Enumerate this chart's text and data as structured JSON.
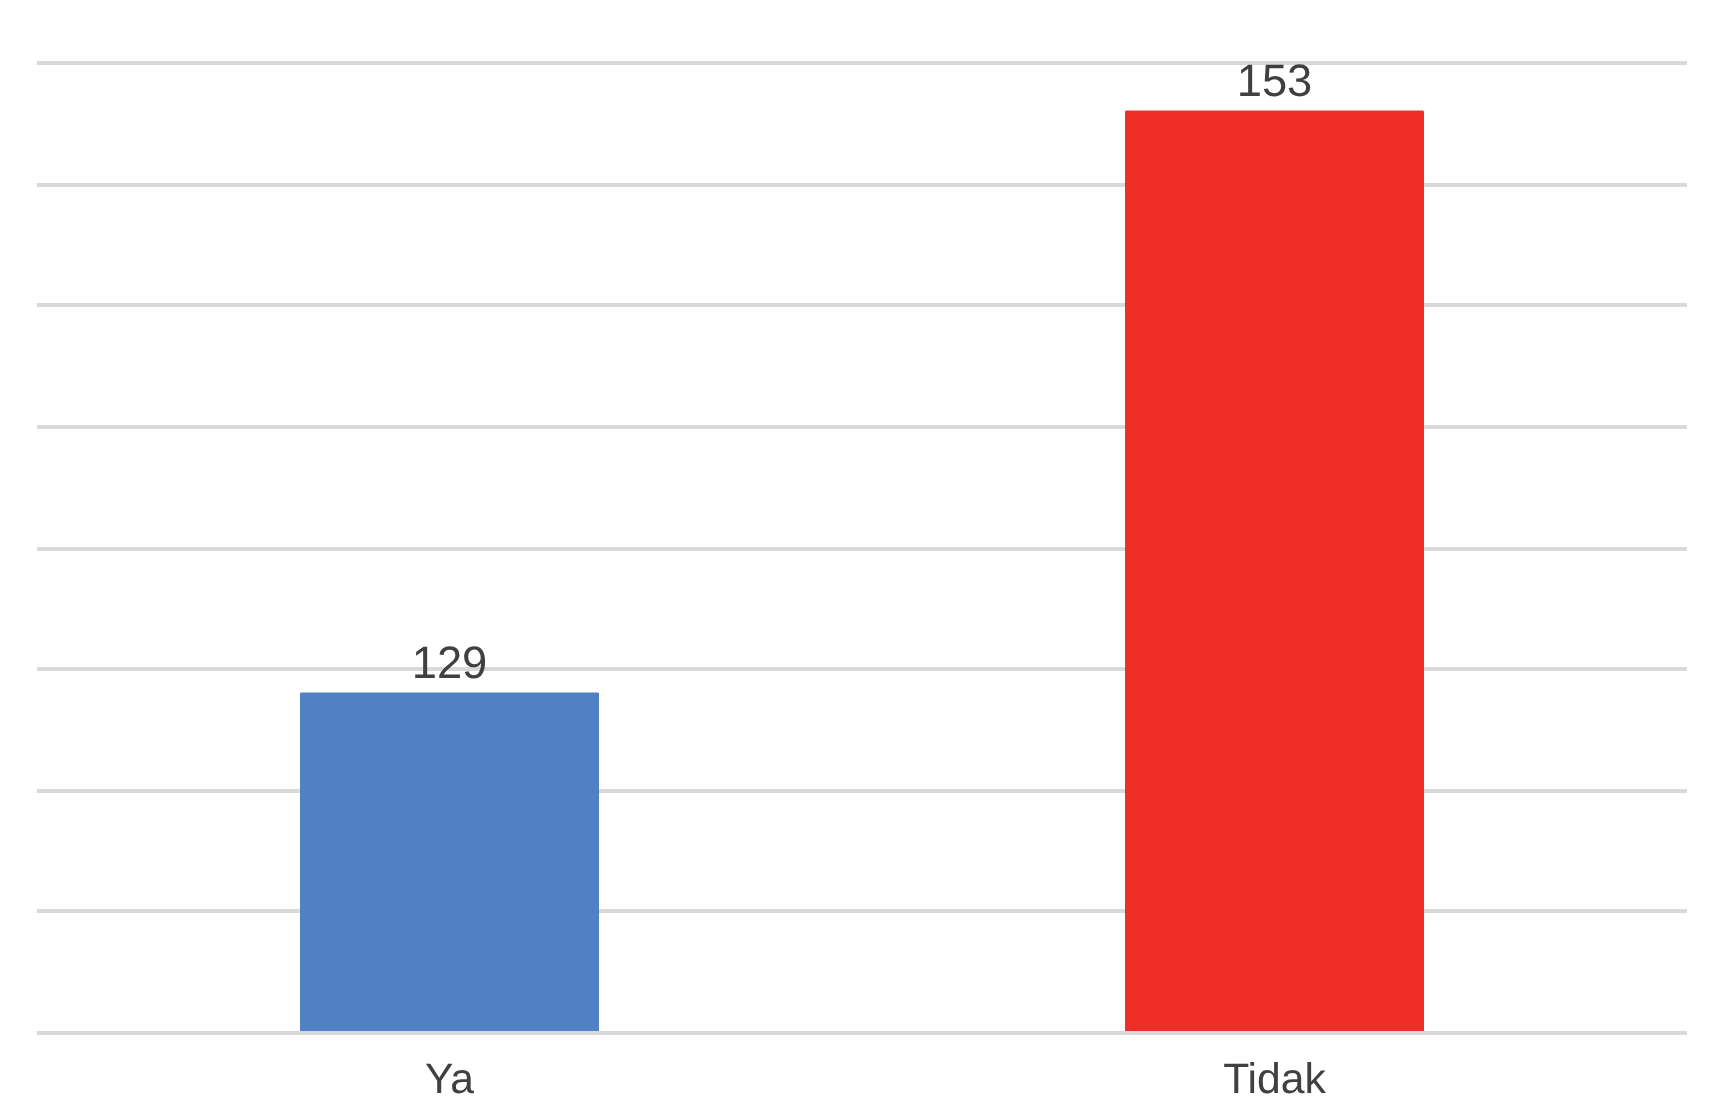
{
  "chart_data": {
    "type": "bar",
    "categories": [
      "Ya",
      "Tidak"
    ],
    "values": [
      129,
      153
    ],
    "colors": [
      "#4f81c4",
      "#ee2e27"
    ],
    "ylim": [
      115,
      155
    ],
    "yticks": [
      115,
      120,
      125,
      130,
      135,
      140,
      145,
      150,
      155
    ],
    "tick_labels": "x",
    "grid": "y",
    "data_labels": true
  }
}
